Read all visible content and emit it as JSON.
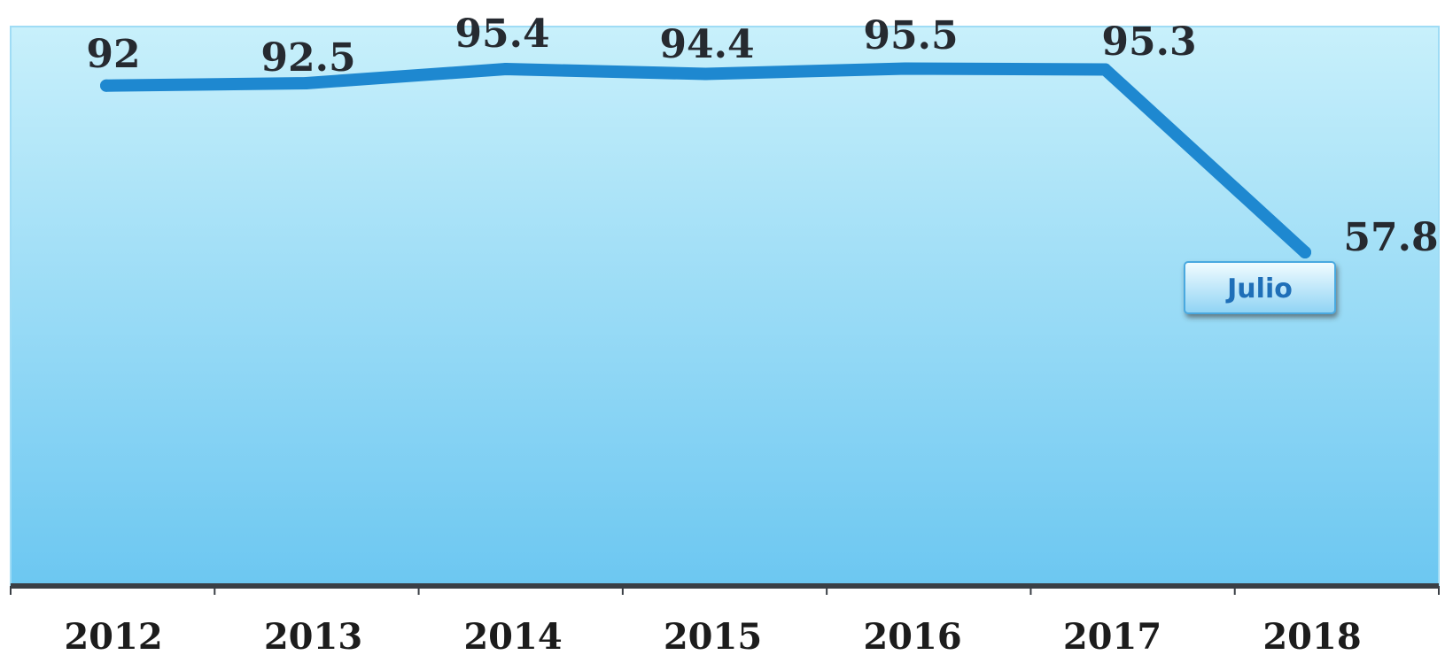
{
  "chart_data": {
    "type": "line",
    "title": "",
    "xlabel": "",
    "ylabel": "",
    "categories": [
      "2012",
      "2013",
      "2014",
      "2015",
      "2016",
      "2017",
      "2018"
    ],
    "series": [
      {
        "values": [
          92,
          92.5,
          95.4,
          94.4,
          95.5,
          95.3,
          57.8
        ]
      }
    ],
    "data_labels": [
      "92",
      "92.5",
      "95.4",
      "94.4",
      "95.5",
      "95.3",
      "57.8"
    ],
    "annotations": [
      {
        "text": "Julio",
        "category": "2018"
      }
    ],
    "grid": false,
    "legend": "none",
    "colors": {
      "line": "#1e88d0",
      "plot_top": "#c8f0fb",
      "plot_bottom": "#6cc7f1",
      "baseline": "#3a3f45",
      "label": "#262a30",
      "annotation_text": "#1f6fb8"
    }
  }
}
